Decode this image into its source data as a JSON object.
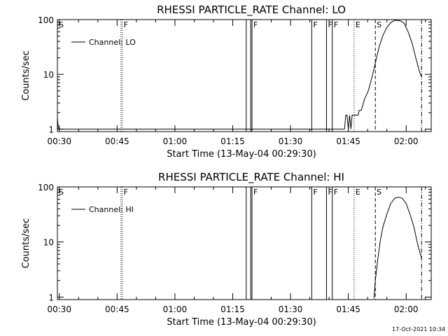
{
  "footer": {
    "timestamp": "17-Oct-2021 10:34"
  },
  "chart_data": [
    {
      "type": "line",
      "title": "RHESSI PARTICLE_RATE Channel: LO",
      "xlabel": "Start Time (13-May-04 00:29:30)",
      "ylabel": "Counts/sec",
      "yscale": "log",
      "xlim": [
        "00:29:30",
        "02:06:30"
      ],
      "ylim": [
        0.9,
        100
      ],
      "x_ticks": [
        "00:30",
        "00:45",
        "01:00",
        "01:15",
        "01:30",
        "01:45",
        "02:00"
      ],
      "y_ticks": [
        "1",
        "10",
        "100"
      ],
      "legend_position": "top-left",
      "series": [
        {
          "name": "Channel: LO",
          "points": [
            [
              "00:29:30",
              1.6
            ],
            [
              "00:29:45",
              1
            ],
            [
              "01:44:00",
              1
            ],
            [
              "01:44:20",
              1.8
            ],
            [
              "01:44:40",
              1.8
            ],
            [
              "01:45:00",
              1
            ],
            [
              "01:45:20",
              1.8
            ],
            [
              "01:45:40",
              1
            ],
            [
              "01:46:00",
              1.8
            ],
            [
              "01:47:30",
              1.8
            ],
            [
              "01:47:50",
              2.2
            ],
            [
              "01:48:20",
              2.2
            ],
            [
              "01:48:40",
              2.6
            ],
            [
              "01:49:10",
              3.5
            ],
            [
              "01:50:10",
              5
            ],
            [
              "01:51:10",
              9
            ],
            [
              "01:52:10",
              18
            ],
            [
              "01:53:00",
              32
            ],
            [
              "01:54:00",
              52
            ],
            [
              "01:55:00",
              72
            ],
            [
              "01:56:00",
              88
            ],
            [
              "01:57:00",
              97
            ],
            [
              "01:58:30",
              95
            ],
            [
              "01:59:30",
              85
            ],
            [
              "02:00:30",
              60
            ],
            [
              "02:01:30",
              38
            ],
            [
              "02:02:30",
              20
            ],
            [
              "02:03:30",
              11
            ],
            [
              "02:04:00",
              9
            ]
          ]
        }
      ],
      "markers": [
        {
          "label": "S",
          "times": [
            "00:29:30"
          ],
          "style": "solid",
          "show_label": true
        },
        {
          "label": "F",
          "times": [
            "00:46:00",
            "00:46:20"
          ],
          "style": "dotted",
          "show_label": true
        },
        {
          "label": "",
          "times": [
            "01:18:30",
            "01:19:40"
          ],
          "style": "solid",
          "show_label": false
        },
        {
          "label": "F",
          "times": [
            "01:20:00"
          ],
          "style": "solid",
          "show_label": true
        },
        {
          "label": "F",
          "times": [
            "01:35:30"
          ],
          "style": "solid",
          "show_label": true
        },
        {
          "label": "F",
          "times": [
            "01:39:20"
          ],
          "style": "solid",
          "show_label": true
        },
        {
          "label": "F",
          "times": [
            "01:40:50"
          ],
          "style": "solid",
          "show_label": true
        },
        {
          "label": "E",
          "times": [
            "01:46:30"
          ],
          "style": "dotted",
          "show_label": true
        },
        {
          "label": "S",
          "times": [
            "01:52:00"
          ],
          "style": "dashed",
          "show_label": true
        },
        {
          "label": "",
          "times": [
            "02:04:00"
          ],
          "style": "dashdot",
          "show_label": false
        }
      ]
    },
    {
      "type": "line",
      "title": "RHESSI PARTICLE_RATE Channel: HI",
      "xlabel": "Start Time (13-May-04 00:29:30)",
      "ylabel": "Counts/sec",
      "yscale": "log",
      "xlim": [
        "00:29:30",
        "02:06:30"
      ],
      "ylim": [
        0.9,
        100
      ],
      "x_ticks": [
        "00:30",
        "00:45",
        "01:00",
        "01:15",
        "01:30",
        "01:45",
        "02:00"
      ],
      "y_ticks": [
        "1",
        "10",
        "100"
      ],
      "legend_position": "top-left",
      "series": [
        {
          "name": "Channel: HI",
          "points": [
            [
              "01:51:40",
              0.95
            ],
            [
              "01:52:00",
              2
            ],
            [
              "01:52:40",
              5
            ],
            [
              "01:53:20",
              11
            ],
            [
              "01:54:00",
              19
            ],
            [
              "01:55:00",
              32
            ],
            [
              "01:56:00",
              50
            ],
            [
              "01:57:00",
              62
            ],
            [
              "01:58:00",
              65
            ],
            [
              "01:59:00",
              62
            ],
            [
              "02:00:00",
              50
            ],
            [
              "02:01:00",
              32
            ],
            [
              "02:02:00",
              19
            ],
            [
              "02:03:00",
              9
            ],
            [
              "02:04:00",
              5
            ]
          ]
        }
      ],
      "markers": [
        {
          "label": "S",
          "times": [
            "00:29:30"
          ],
          "style": "solid",
          "show_label": true
        },
        {
          "label": "F",
          "times": [
            "00:46:00",
            "00:46:20"
          ],
          "style": "dotted",
          "show_label": true
        },
        {
          "label": "",
          "times": [
            "01:18:30",
            "01:19:40"
          ],
          "style": "solid",
          "show_label": false
        },
        {
          "label": "F",
          "times": [
            "01:20:00"
          ],
          "style": "solid",
          "show_label": true
        },
        {
          "label": "F",
          "times": [
            "01:35:30"
          ],
          "style": "solid",
          "show_label": true
        },
        {
          "label": "F",
          "times": [
            "01:39:20"
          ],
          "style": "solid",
          "show_label": true
        },
        {
          "label": "F",
          "times": [
            "01:40:50"
          ],
          "style": "solid",
          "show_label": true
        },
        {
          "label": "E",
          "times": [
            "01:46:30"
          ],
          "style": "dotted",
          "show_label": true
        },
        {
          "label": "S",
          "times": [
            "01:52:00"
          ],
          "style": "dashed",
          "show_label": true
        },
        {
          "label": "",
          "times": [
            "02:04:00"
          ],
          "style": "dashdot",
          "show_label": false
        }
      ]
    }
  ]
}
